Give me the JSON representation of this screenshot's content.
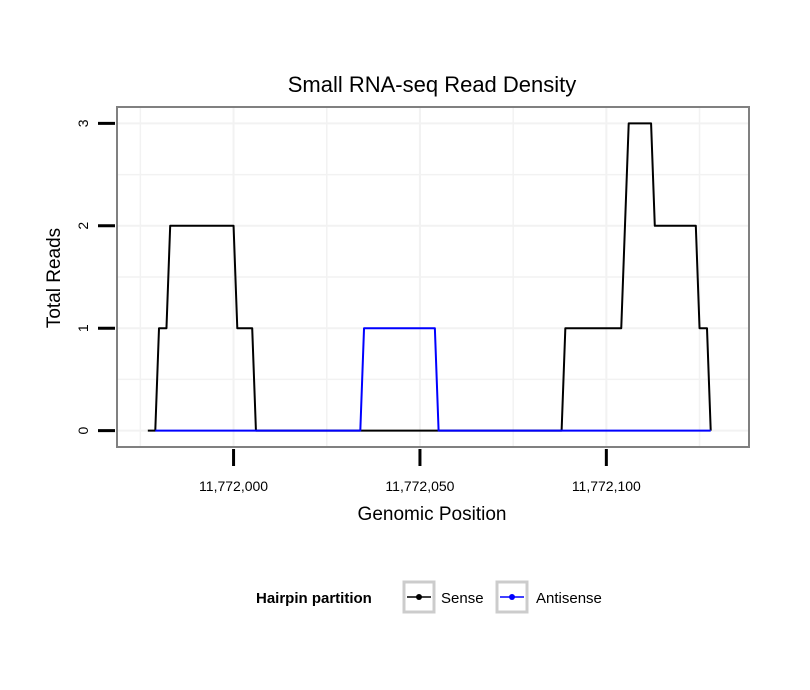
{
  "chart_data": {
    "type": "line",
    "title": "Small RNA-seq Read Density",
    "xlabel": "Genomic Position",
    "ylabel": "Total Reads",
    "xlim": [
      11771969,
      11772138
    ],
    "ylim": [
      -0.15,
      3.15
    ],
    "x_ticks": [
      11772000,
      11772050,
      11772100
    ],
    "x_tick_labels": [
      "11,772,000",
      "11,772,050",
      "11,772,100"
    ],
    "y_ticks": [
      0,
      1,
      2,
      3
    ],
    "y_tick_labels": [
      "0",
      "1",
      "2",
      "3"
    ],
    "grid": true,
    "legend": {
      "title": "Hairpin partition",
      "position": "bottom"
    },
    "series": [
      {
        "name": "Sense",
        "color": "#000000",
        "points": [
          [
            11771977,
            0
          ],
          [
            11771979,
            0
          ],
          [
            11771980,
            1
          ],
          [
            11771982,
            1
          ],
          [
            11771983,
            2
          ],
          [
            11772000,
            2
          ],
          [
            11772001,
            1
          ],
          [
            11772005,
            1
          ],
          [
            11772006,
            0
          ],
          [
            11772088,
            0
          ],
          [
            11772089,
            1
          ],
          [
            11772104,
            1
          ],
          [
            11772106,
            3
          ],
          [
            11772112,
            3
          ],
          [
            11772113,
            2
          ],
          [
            11772124,
            2
          ],
          [
            11772125,
            1
          ],
          [
            11772127,
            1
          ],
          [
            11772128,
            0
          ]
        ]
      },
      {
        "name": "Antisense",
        "color": "#0000ff",
        "points": [
          [
            11771979,
            0
          ],
          [
            11772034,
            0
          ],
          [
            11772035,
            1
          ],
          [
            11772054,
            1
          ],
          [
            11772055,
            0
          ],
          [
            11772128,
            0
          ]
        ]
      }
    ]
  }
}
